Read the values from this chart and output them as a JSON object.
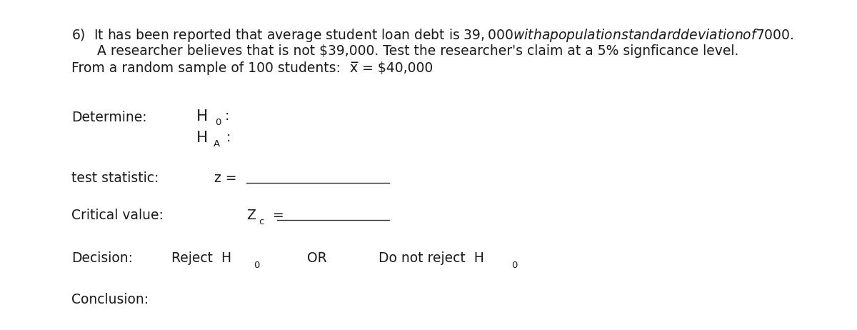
{
  "bg_color": "#ffffff",
  "text_color": "#1a1a1a",
  "line1": "6)  It has been reported that average student loan debt is $39,000 with a population standard deviation of $7000.",
  "line2": "      A researcher believes that is not $39,000. Test the researcher's claim at a 5% signficance level.",
  "line3_a": "From a random sample of 100 students:",
  "line3_b": "x = $40,000",
  "determine_label": "Determine:",
  "test_stat_label": "test statistic:",
  "z_eq": "z = ",
  "critical_label": "Critical value:",
  "zc_main": "Z",
  "zc_sub": "c",
  "zc_eq": " =",
  "decision_label": "Decision:",
  "reject_h": "Reject  H",
  "reject_sub": "0",
  "or_text": "OR",
  "do_not_reject": "Do not reject  H",
  "do_not_sub": "0",
  "conclusion_label": "Conclusion:",
  "font_size": 13.5,
  "font_size_small": 9.5,
  "line_color": "#333333",
  "font_family": "DejaVu Sans"
}
